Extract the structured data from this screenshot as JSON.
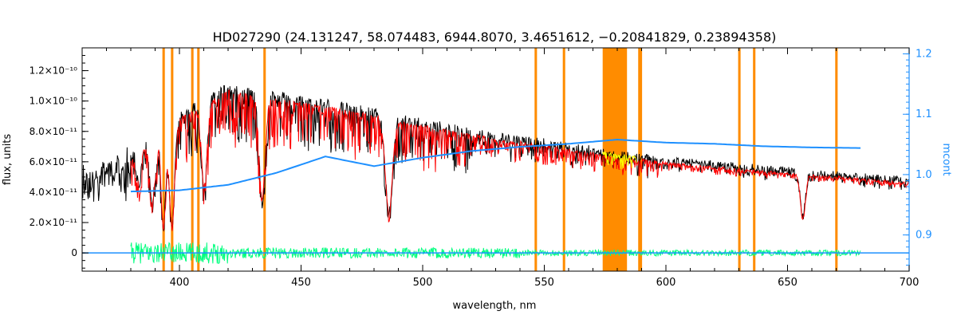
{
  "chart_data": {
    "type": "line",
    "title": "HD027290    (24.131247, 58.074483, 6944.8070, 3.4651612, −0.20841829, 0.23894358)",
    "xlabel": "wavelength, nm",
    "ylabel": "flux, units",
    "y2label": "mcont",
    "xlim": [
      360,
      700
    ],
    "ylim": [
      -1.2e-11,
      1.35e-10
    ],
    "y2lim": [
      0.84,
      1.21
    ],
    "xticks": [
      400,
      450,
      500,
      550,
      600,
      650,
      700
    ],
    "yticks": [
      0,
      2e-11,
      4e-11,
      6e-11,
      8e-11,
      1e-10,
      1.2e-10
    ],
    "yticklabels": [
      "0",
      "2.0×10⁻¹¹",
      "4.0×10⁻¹¹",
      "6.0×10⁻¹¹",
      "8.0×10⁻¹¹",
      "1.0×10⁻¹⁰",
      "1.2×10⁻¹⁰"
    ],
    "y2ticks": [
      0.9,
      1.0,
      1.1,
      1.2
    ],
    "grid": false,
    "colors": {
      "observed": "#000000",
      "model": "#ff0000",
      "residual": "#00ff7f",
      "mcont": "#1e90ff",
      "masked": "#ffff00",
      "mask_bands": "#ff8c00",
      "axis": "#000000",
      "right_axis": "#1e90ff"
    },
    "mask_regions": [
      [
        393.0,
        394.0
      ],
      [
        396.5,
        397.5
      ],
      [
        404.8,
        405.8
      ],
      [
        407.3,
        408.3
      ],
      [
        434.5,
        435.5
      ],
      [
        546.0,
        547.0
      ],
      [
        557.6,
        558.6
      ],
      [
        574.0,
        584.0
      ],
      [
        588.6,
        590.2
      ],
      [
        629.7,
        630.7
      ],
      [
        635.8,
        636.8
      ],
      [
        669.6,
        670.6
      ]
    ],
    "continuum_ref": {
      "x": [
        360,
        380,
        400,
        420,
        440,
        460,
        470,
        480,
        490,
        500,
        520,
        540,
        560,
        580,
        600,
        620,
        640,
        660,
        680,
        700
      ],
      "flux": [
        5.2e-11,
        6.3e-11,
        9.1e-11,
        1.1e-10,
        1.04e-10,
        9.9e-11,
        9.6e-11,
        9.3e-11,
        8.9e-11,
        8.6e-11,
        8e-11,
        7.5e-11,
        7e-11,
        6.5e-11,
        6.1e-11,
        5.8e-11,
        5.5e-11,
        5.25e-11,
        5e-11,
        4.7e-11
      ]
    },
    "absorption_lines": [
      {
        "wl": 383.5,
        "depth": 0.35,
        "width": 1.0
      },
      {
        "wl": 388.9,
        "depth": 0.55,
        "width": 1.5
      },
      {
        "wl": 393.4,
        "depth": 0.8,
        "width": 1.3
      },
      {
        "wl": 396.9,
        "depth": 0.8,
        "width": 1.5
      },
      {
        "wl": 410.2,
        "depth": 0.55,
        "width": 1.6
      },
      {
        "wl": 434.0,
        "depth": 0.65,
        "width": 1.7
      },
      {
        "wl": 486.1,
        "depth": 0.7,
        "width": 2.0
      },
      {
        "wl": 656.3,
        "depth": 0.55,
        "width": 1.4
      }
    ],
    "mcont": {
      "x": [
        380,
        400,
        420,
        440,
        460,
        480,
        500,
        520,
        540,
        560,
        580,
        600,
        620,
        640,
        660,
        680
      ],
      "y": [
        0.972,
        0.974,
        0.983,
        1.003,
        1.03,
        1.014,
        1.028,
        1.039,
        1.046,
        1.051,
        1.058,
        1.053,
        1.051,
        1.047,
        1.045,
        1.044
      ]
    },
    "residual_range": [
      380,
      680
    ]
  }
}
